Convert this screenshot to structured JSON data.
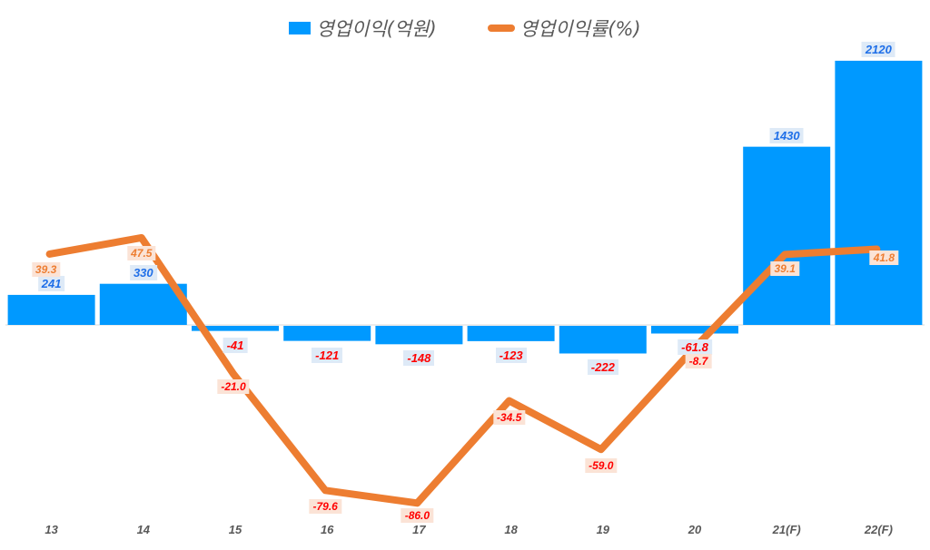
{
  "legend": {
    "bar_label": "영업이익(억원)",
    "line_label": "영업이익률(%)"
  },
  "colors": {
    "bar": "#0099ff",
    "line": "#ed7d31",
    "bar_label_positive": "#1f6fe8",
    "bar_label_negative": "#ff0000",
    "line_label_positive": "#ed7d31",
    "line_label_negative": "#ff0000",
    "axis_label": "#595959"
  },
  "chart_data": {
    "type": "bar",
    "combo": "bar+line",
    "title": "",
    "xlabel": "",
    "ylabel": "",
    "categories": [
      "13",
      "14",
      "15",
      "16",
      "17",
      "18",
      "19",
      "20",
      "21(F)",
      "22(F)"
    ],
    "series": [
      {
        "name": "영업이익(억원)",
        "type": "bar",
        "values": [
          241,
          330,
          -41,
          -121,
          -148,
          -123,
          -222,
          -61.8,
          1430,
          2120
        ],
        "labels": [
          "241",
          "330",
          "-41",
          "-121",
          "-148",
          "-123",
          "-222",
          "-61.8",
          "1430",
          "2120"
        ]
      },
      {
        "name": "영업이익률(%)",
        "type": "line",
        "values": [
          39.3,
          47.5,
          -21.0,
          -79.6,
          -86.0,
          -34.5,
          -59.0,
          -8.7,
          39.1,
          41.8
        ],
        "labels": [
          "39.3",
          "47.5",
          "-21.0",
          "-79.6",
          "-86.0",
          "-34.5",
          "-59.0",
          "-8.7",
          "39.1",
          "41.8"
        ]
      }
    ],
    "grid": false,
    "legend_position": "top"
  }
}
